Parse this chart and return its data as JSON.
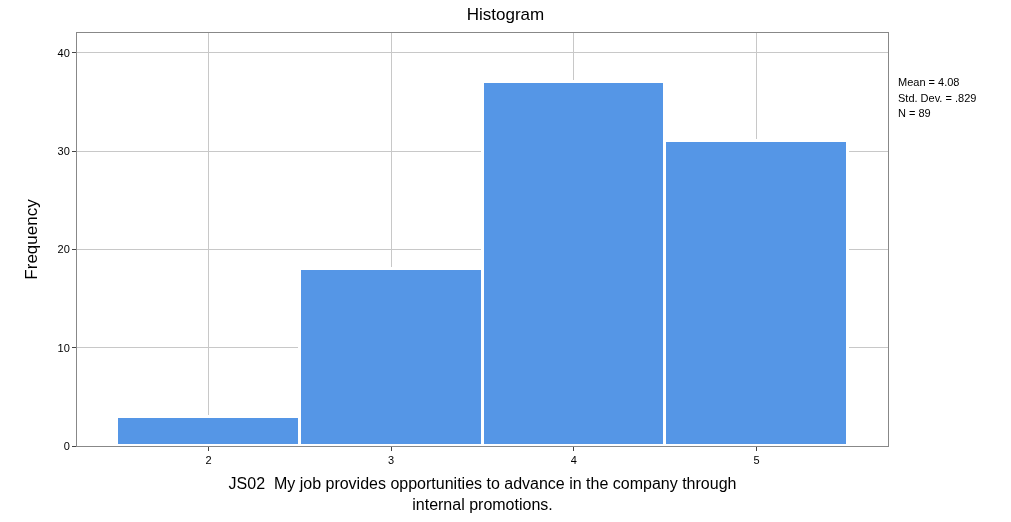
{
  "chart_data": {
    "type": "histogram",
    "title": "Histogram",
    "xlabel": "JS02  My job provides opportunities to advance in the company through internal promotions.",
    "ylabel": "Frequency",
    "bins": [
      1.5,
      2.5,
      3.5,
      4.5,
      5.5
    ],
    "values": [
      3,
      18,
      37,
      31
    ],
    "color": "#5596e6",
    "xlim": [
      1.28,
      5.72
    ],
    "xticks": [
      2,
      3,
      4,
      5
    ],
    "ylim": [
      0,
      42
    ],
    "yticks": [
      0,
      10,
      20,
      30,
      40
    ],
    "grid": true,
    "annotations": [
      "Mean = 4.08",
      "Std. Dev. = .829",
      "N = 89"
    ]
  }
}
